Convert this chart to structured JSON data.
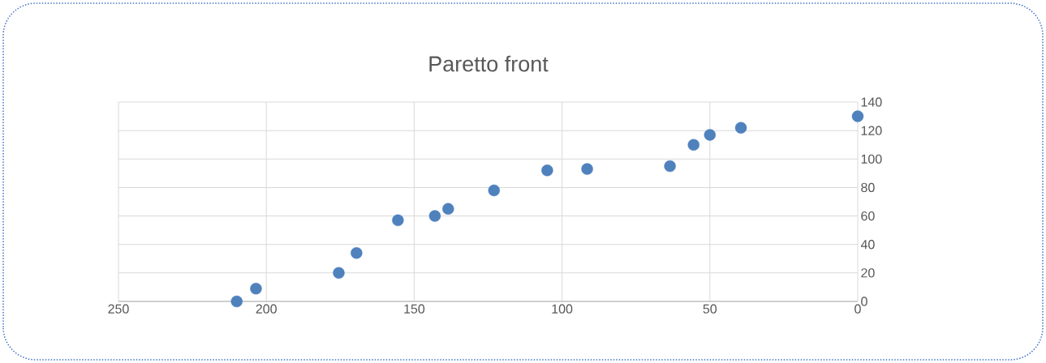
{
  "chart_data": {
    "type": "scatter",
    "title": "Paretto front",
    "x": [
      210,
      203.5,
      175.5,
      169.5,
      155.5,
      143,
      138.5,
      123,
      105,
      91.5,
      63.5,
      55.5,
      50,
      39.5,
      0
    ],
    "values": [
      0,
      9,
      20,
      34,
      57,
      60,
      65,
      78,
      92,
      93,
      95,
      110,
      117,
      122,
      130
    ],
    "color": "#4f81bd",
    "marker": "circle",
    "xlim": [
      250,
      0
    ],
    "xticks": [
      250,
      200,
      150,
      100,
      50,
      0
    ],
    "ylim": [
      0,
      140
    ],
    "yticks": [
      0,
      20,
      40,
      60,
      80,
      100,
      120,
      140
    ],
    "grid": true
  }
}
